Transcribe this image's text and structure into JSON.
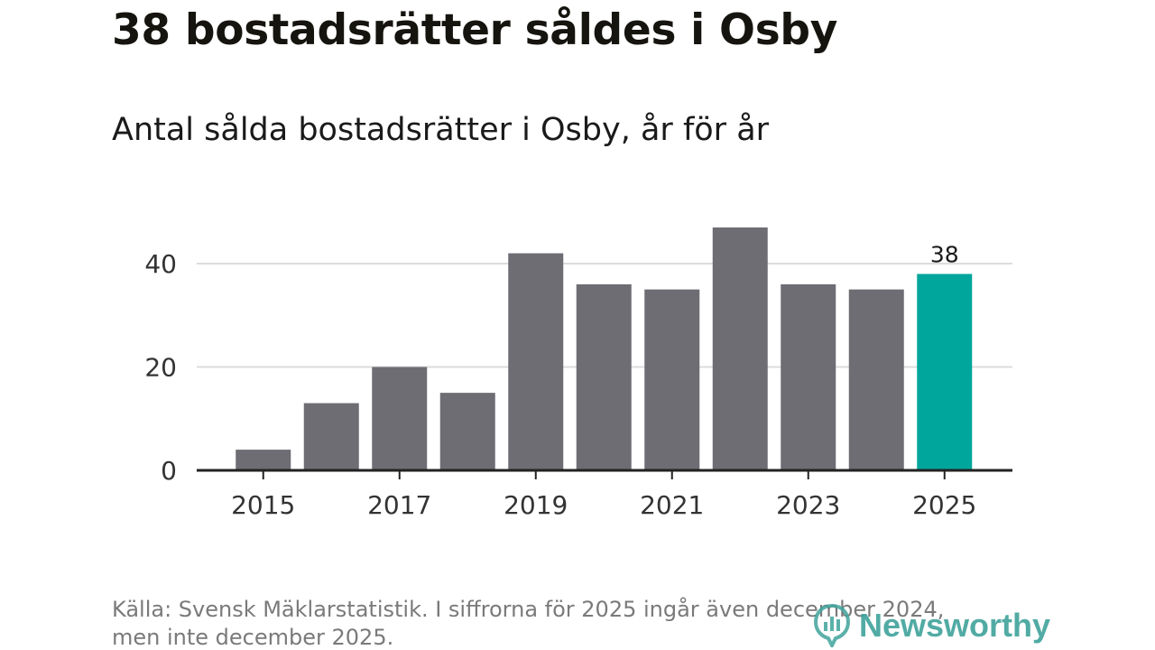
{
  "header": {
    "title": "38 bostadsrätter såldes i Osby",
    "subtitle": "Antal sålda bostadsrätter i Osby, år för år"
  },
  "footer": {
    "source_line1": "Källa: Svensk Mäklarstatistik. I siffrorna för 2025 ingår även december 2024,",
    "source_line2": "men inte december 2025.",
    "logo_text": "Newsworthy"
  },
  "colors": {
    "bar": "#6e6d73",
    "highlight": "#00a69c",
    "grid": "#dcdcdc",
    "axis": "#222222"
  },
  "chart_data": {
    "type": "bar",
    "title": "Antal sålda bostadsrätter i Osby, år för år",
    "xlabel": "",
    "ylabel": "",
    "categories": [
      "2015",
      "2016",
      "2017",
      "2018",
      "2019",
      "2020",
      "2021",
      "2022",
      "2023",
      "2024",
      "2025"
    ],
    "values": [
      4,
      13,
      20,
      15,
      42,
      36,
      35,
      47,
      36,
      35,
      38
    ],
    "highlight_category": "2025",
    "highlight_label": "38",
    "x_tick_labels": [
      "2015",
      "2017",
      "2019",
      "2021",
      "2023",
      "2025"
    ],
    "y_ticks": [
      0,
      20,
      40
    ],
    "ylim": [
      0,
      50
    ],
    "grid": true
  }
}
